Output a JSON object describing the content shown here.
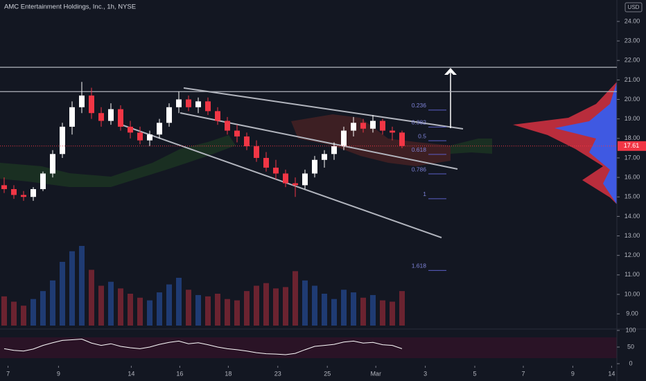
{
  "chart_data": {
    "type": "candlestick",
    "title": "AMC Entertainment Holdings, Inc., 1h, NYSE",
    "currency": "USD",
    "open": [
      15.6,
      15.4,
      15.1,
      15.0,
      15.4,
      16.2,
      17.2,
      18.6,
      19.6,
      20.2,
      19.3,
      18.9,
      19.5,
      18.6,
      18.3,
      17.9,
      18.2,
      18.8,
      19.6,
      20.0,
      19.6,
      19.9,
      19.4,
      18.9,
      18.4,
      18.1,
      17.6,
      17.0,
      16.5,
      16.2,
      15.7,
      15.6,
      16.2,
      16.9,
      17.2,
      17.6,
      18.4,
      18.8,
      18.5,
      18.9,
      18.4,
      18.3
    ],
    "high": [
      16.0,
      15.6,
      15.3,
      15.5,
      16.3,
      17.4,
      18.8,
      19.9,
      20.9,
      20.6,
      19.6,
      19.8,
      19.7,
      18.9,
      18.6,
      18.4,
      19.0,
      19.8,
      20.4,
      20.2,
      20.1,
      20.1,
      19.6,
      19.1,
      18.7,
      18.3,
      17.9,
      17.3,
      16.9,
      16.4,
      16.0,
      16.4,
      17.1,
      17.4,
      17.8,
      18.6,
      19.1,
      19.0,
      19.2,
      19.0,
      18.6,
      18.4
    ],
    "low": [
      15.2,
      14.9,
      14.8,
      14.8,
      15.3,
      16.0,
      17.0,
      18.2,
      19.3,
      19.0,
      18.6,
      18.7,
      18.4,
      18.0,
      17.7,
      17.6,
      18.0,
      18.6,
      19.3,
      19.4,
      19.3,
      19.2,
      18.7,
      18.2,
      17.8,
      17.4,
      16.8,
      16.3,
      15.9,
      15.5,
      15.0,
      15.4,
      16.0,
      16.5,
      16.9,
      17.4,
      18.1,
      18.3,
      18.3,
      18.2,
      17.9,
      17.5
    ],
    "close": [
      15.4,
      15.1,
      15.0,
      15.4,
      16.2,
      17.2,
      18.6,
      19.6,
      20.2,
      19.3,
      18.9,
      19.5,
      18.6,
      18.3,
      17.9,
      18.2,
      18.8,
      19.6,
      20.0,
      19.6,
      19.9,
      19.4,
      18.9,
      18.4,
      18.1,
      17.6,
      17.0,
      16.5,
      16.2,
      15.7,
      15.6,
      16.2,
      16.9,
      17.2,
      17.6,
      18.4,
      18.8,
      18.5,
      18.9,
      18.4,
      18.3,
      17.61
    ],
    "volume": [
      2.2,
      1.8,
      1.5,
      2.0,
      2.6,
      3.4,
      4.8,
      5.6,
      6.0,
      4.2,
      3.0,
      3.3,
      2.8,
      2.4,
      2.1,
      1.9,
      2.5,
      3.1,
      3.6,
      2.7,
      2.3,
      2.2,
      2.4,
      2.0,
      1.9,
      2.6,
      3.0,
      3.2,
      2.8,
      2.9,
      4.1,
      3.4,
      3.0,
      2.4,
      2.0,
      2.7,
      2.5,
      2.1,
      2.3,
      1.9,
      1.8,
      2.6
    ],
    "rsi": [
      45,
      40,
      38,
      44,
      55,
      63,
      70,
      72,
      74,
      62,
      55,
      60,
      52,
      48,
      45,
      50,
      58,
      64,
      68,
      60,
      63,
      57,
      50,
      45,
      42,
      38,
      33,
      30,
      29,
      27,
      31,
      42,
      52,
      55,
      58,
      65,
      68,
      62,
      64,
      57,
      55,
      45
    ],
    "ylim": [
      8.4,
      25.1
    ],
    "yticks": [
      {
        "value": 9,
        "label": "9.00"
      },
      {
        "value": 10,
        "label": "10.00"
      },
      {
        "value": 11,
        "label": "11.00"
      },
      {
        "value": 12,
        "label": "12.00"
      },
      {
        "value": 13,
        "label": "13.00"
      },
      {
        "value": 14,
        "label": "14.00"
      },
      {
        "value": 15,
        "label": "15.00"
      },
      {
        "value": 16,
        "label": "16.00"
      },
      {
        "value": 17,
        "label": "17.00"
      },
      {
        "value": 18,
        "label": "18.00"
      },
      {
        "value": 19,
        "label": "19.00"
      },
      {
        "value": 20,
        "label": "20.00"
      },
      {
        "value": 21,
        "label": "21.00"
      },
      {
        "value": 22,
        "label": "22.00"
      },
      {
        "value": 23,
        "label": "23.00"
      },
      {
        "value": 24,
        "label": "24.00"
      }
    ],
    "xticks": [
      {
        "value": 0.4,
        "label": "7"
      },
      {
        "value": 5.6,
        "label": "9"
      },
      {
        "value": 13.1,
        "label": "14"
      },
      {
        "value": 18.1,
        "label": "16"
      },
      {
        "value": 23.1,
        "label": "18"
      },
      {
        "value": 28.2,
        "label": "23"
      },
      {
        "value": 33.3,
        "label": "25"
      },
      {
        "value": 38.3,
        "label": "Mar"
      },
      {
        "value": 43.4,
        "label": "3"
      },
      {
        "value": 48.5,
        "label": "5"
      },
      {
        "value": 53.5,
        "label": "7"
      },
      {
        "value": 58.6,
        "label": "9"
      },
      {
        "value": 62.6,
        "label": "14"
      }
    ],
    "rsi_ylim": [
      0,
      100
    ],
    "rsi_yticks": [
      0,
      50,
      100
    ],
    "levels": [
      21.65,
      20.4
    ],
    "fibonacci": {
      "start": 21.0,
      "end": 15.05,
      "levels": [
        0.236,
        0.382,
        0.5,
        0.618,
        0.786,
        1,
        1.618
      ]
    },
    "colors": {
      "up": "#ffffff",
      "down": "#f23645",
      "volume_up": "#1f3b73",
      "volume_down": "#6b2330",
      "rsi": "#ffffff"
    }
  }
}
